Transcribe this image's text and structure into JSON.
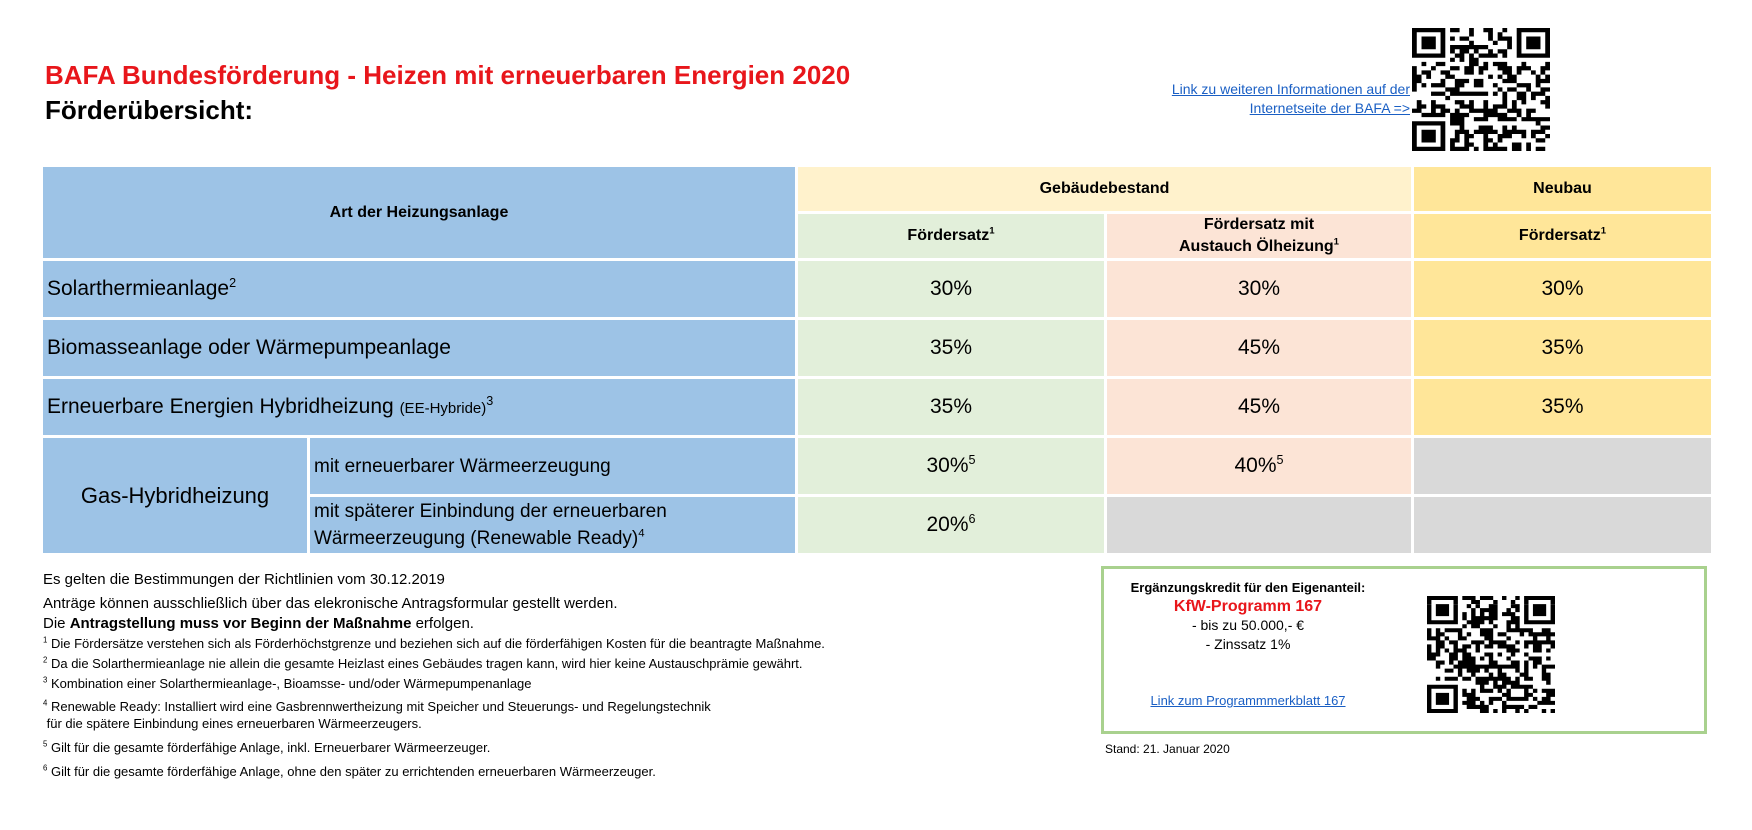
{
  "header": {
    "title": "BAFA Bundesförderung - Heizen mit erneuerbaren Energien 2020",
    "subtitle": "Förderübersicht:",
    "link_line1": "Link zu weiteren Informationen auf der",
    "link_line2": "Internetseite der BAFA =>"
  },
  "table": {
    "col_art": "Art der Heizungsanlage",
    "group_bestand": "Gebäudebestand",
    "group_neubau": "Neubau",
    "foerdersatz": "Fördersatz",
    "foerdersatz_oel_line1": "Fördersatz mit",
    "foerdersatz_oel_line2": "Austauch Ölheizung",
    "fn1": "1",
    "rows": [
      {
        "label": "Solarthermieanlage",
        "sup": "2",
        "bestand": "30%",
        "oel": "30%",
        "neubau": "30%"
      },
      {
        "label": "Biomasseanlage oder Wärmepumpeanlage",
        "bestand": "35%",
        "oel": "45%",
        "neubau": "35%"
      },
      {
        "label": "Erneuerbare Energien Hybridheizung",
        "small": "(EE-Hybride)",
        "sup": "3",
        "bestand": "35%",
        "oel": "45%",
        "neubau": "35%"
      }
    ],
    "gas": {
      "label": "Gas-Hybridheizung",
      "sub1": "mit erneuerbarer Wärmeerzeugung",
      "sub1_bestand": "30%",
      "sub1_bestand_sup": "5",
      "sub1_oel": "40%",
      "sub1_oel_sup": "5",
      "sub2_line1": "mit späterer Einbindung der erneuerbaren",
      "sub2_line2": "Wärmeerzeugung (Renewable Ready)",
      "sub2_sup": "4",
      "sub2_bestand": "20%",
      "sub2_bestand_sup": "6"
    }
  },
  "notes": {
    "n1": "Es gelten die Bestimmungen der Richtlinien vom 30.12.2019",
    "n2": "Anträge können ausschließlich über das elekronische Antragsformular gestellt werden.",
    "n3_pre": "Die ",
    "n3_bold": "Antragstellung muss vor Beginn der Maßnahme",
    "n3_post": " erfolgen.",
    "footnotes": [
      {
        "n": "1",
        "text": "Die Fördersätze verstehen sich als Förderhöchstgrenze und beziehen sich auf die förderfähigen Kosten für die beantragte Maßnahme."
      },
      {
        "n": "2",
        "text": "Da die Solarthermieanlage nie allein die gesamte Heizlast eines Gebäudes tragen kann, wird hier keine Austauschprämie gewährt."
      },
      {
        "n": "3",
        "text": "Kombination einer Solarthermieanlage-, Bioamsse- und/oder Wärmepumpenanlage"
      },
      {
        "n": "4",
        "text": "Renewable Ready: Installiert wird eine Gasbrennwertheizung mit Speicher und Steuerungs- und Regelungstechnik",
        "text2": "für die spätere Einbindung eines erneuerbaren Wärmeerzeugers."
      },
      {
        "n": "5",
        "text": "Gilt für die gesamte förderfähige Anlage, inkl. Erneuerbarer Wärmeerzeuger."
      },
      {
        "n": "6",
        "text": "Gilt für die gesamte förderfähige Anlage, ohne den später zu errichtenden erneuerbaren Wärmeerzeuger."
      }
    ]
  },
  "kfw": {
    "heading": "Ergänzungskredit für den Eigenanteil:",
    "program": "KfW-Programm 167",
    "item1": "- bis zu 50.000,- €",
    "item2": "- Zinssatz 1%",
    "link": "Link zum Programmmerkblatt 167"
  },
  "stand": "Stand: 21. Januar 2020"
}
